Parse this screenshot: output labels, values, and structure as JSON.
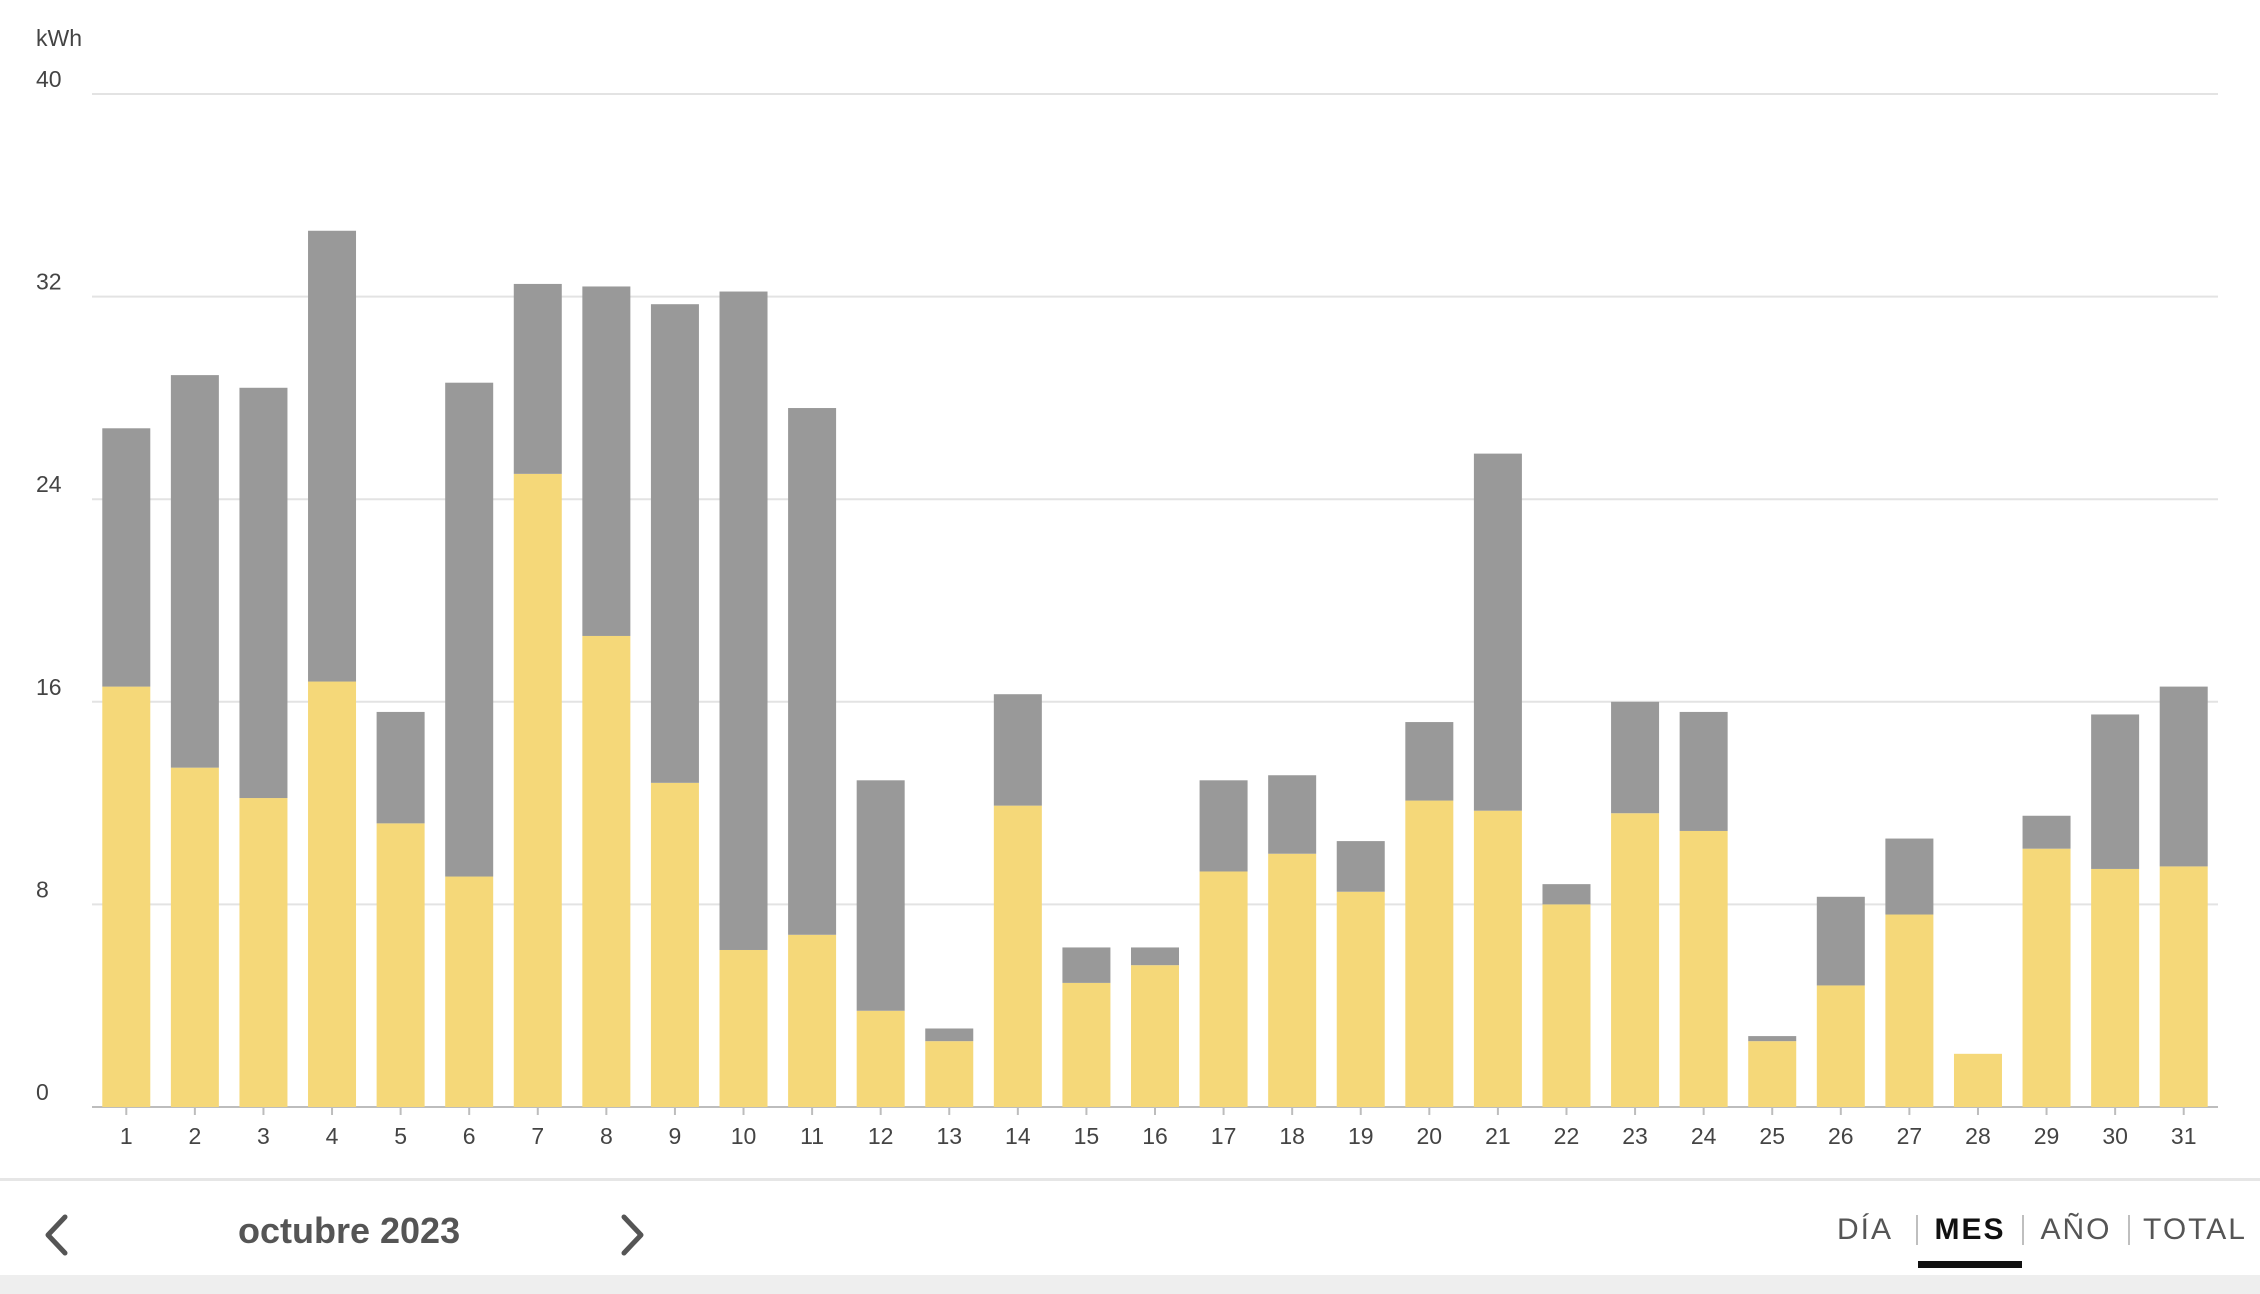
{
  "chart_data": {
    "type": "bar",
    "stacked": true,
    "unit_label": "kWh",
    "ylim": [
      0,
      40
    ],
    "yticks": [
      0,
      8,
      16,
      24,
      32,
      40
    ],
    "grid": true,
    "categories": [
      "1",
      "2",
      "3",
      "4",
      "5",
      "6",
      "7",
      "8",
      "9",
      "10",
      "11",
      "12",
      "13",
      "14",
      "15",
      "16",
      "17",
      "18",
      "19",
      "20",
      "21",
      "22",
      "23",
      "24",
      "25",
      "26",
      "27",
      "28",
      "29",
      "30",
      "31"
    ],
    "series": [
      {
        "color": "#f5d879",
        "values": [
          16.6,
          13.4,
          12.2,
          16.8,
          11.2,
          9.1,
          25.0,
          18.6,
          12.8,
          6.2,
          6.8,
          3.8,
          2.6,
          11.9,
          4.9,
          5.6,
          9.3,
          10.0,
          8.5,
          12.1,
          11.7,
          8.0,
          11.6,
          10.9,
          2.6,
          4.8,
          7.6,
          2.1,
          10.2,
          9.4,
          9.5
        ]
      },
      {
        "color": "#999999",
        "values": [
          10.2,
          15.5,
          16.2,
          17.8,
          4.4,
          19.5,
          7.5,
          13.8,
          18.9,
          26.0,
          20.8,
          9.1,
          0.5,
          4.4,
          1.4,
          0.7,
          3.6,
          3.1,
          2.0,
          3.1,
          14.1,
          0.8,
          4.4,
          4.7,
          0.2,
          3.5,
          3.0,
          0.0,
          1.3,
          6.1,
          7.1
        ]
      }
    ]
  },
  "footer": {
    "period": "octubre 2023",
    "tabs": {
      "dia": "DÍA",
      "mes": "MES",
      "ano": "AÑO",
      "total": "TOTAL"
    },
    "active_tab": "mes"
  }
}
